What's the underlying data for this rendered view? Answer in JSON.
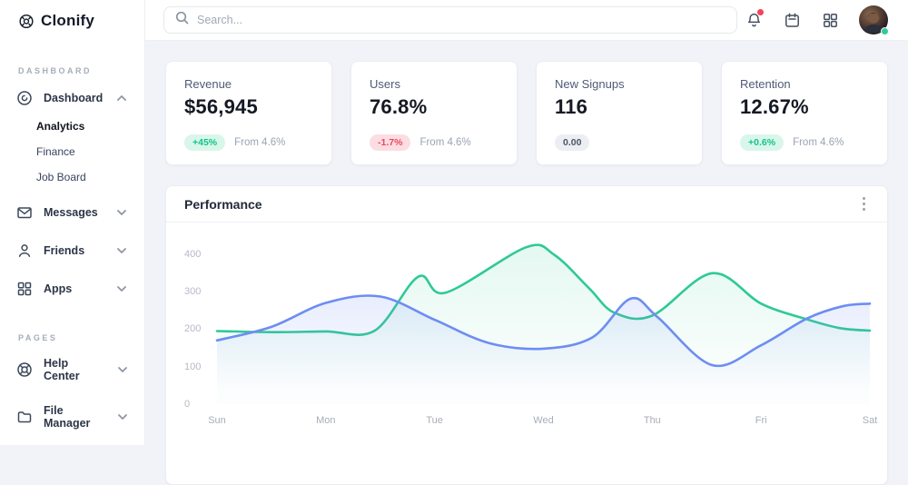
{
  "brand": {
    "name": "Clonify"
  },
  "sidebar": {
    "sections": [
      {
        "label": "DASHBOARD",
        "items": [
          {
            "label": "Dashboard",
            "icon": "dashboard-icon",
            "expanded": true,
            "children": [
              {
                "label": "Analytics",
                "active": true
              },
              {
                "label": "Finance",
                "active": false
              },
              {
                "label": "Job Board",
                "active": false
              }
            ]
          },
          {
            "label": "Messages",
            "icon": "mail-icon"
          },
          {
            "label": "Friends",
            "icon": "user-icon"
          },
          {
            "label": "Apps",
            "icon": "grid-icon"
          }
        ]
      },
      {
        "label": "PAGES",
        "items": [
          {
            "label": "Help Center",
            "icon": "lifebuoy-icon"
          },
          {
            "label": "File Manager",
            "icon": "folder-icon"
          }
        ]
      }
    ]
  },
  "header": {
    "search_placeholder": "Search...",
    "icons": [
      "bell-icon",
      "calendar-icon",
      "apps-grid-icon",
      "user-avatar"
    ],
    "notification_dot_color": "#f4435a",
    "online_dot_color": "#2ecb9c"
  },
  "stats": [
    {
      "label": "Revenue",
      "value": "$56,945",
      "badge": "+45%",
      "badge_type": "positive",
      "note": "From 4.6%"
    },
    {
      "label": "Users",
      "value": "76.8%",
      "badge": "-1.7%",
      "badge_type": "negative",
      "note": "From 4.6%"
    },
    {
      "label": "New Signups",
      "value": "116",
      "badge": "0.00",
      "badge_type": "neutral",
      "note": ""
    },
    {
      "label": "Retention",
      "value": "12.67%",
      "badge": "+0.6%",
      "badge_type": "positive",
      "note": "From 4.6%"
    }
  ],
  "chart_data": {
    "type": "area",
    "title": "Performance",
    "categories": [
      "Sun",
      "Mon",
      "Tue",
      "Wed",
      "Thu",
      "Fri",
      "Sat"
    ],
    "y_ticks": [
      0,
      100,
      200,
      300,
      400
    ],
    "ylim": [
      0,
      460
    ],
    "grid": false,
    "legend": "none",
    "series": [
      {
        "name": "green-series",
        "color": "#2ec996",
        "fill_opacity": 0.14,
        "day_values": [
          195,
          194,
          310,
          405,
          236,
          268,
          196
        ],
        "points": [
          [
            0,
            195
          ],
          [
            0.5,
            192
          ],
          [
            1,
            194
          ],
          [
            1.45,
            196
          ],
          [
            1.85,
            340
          ],
          [
            2.1,
            297
          ],
          [
            2.84,
            418
          ],
          [
            3.1,
            398
          ],
          [
            3.42,
            309
          ],
          [
            3.65,
            244
          ],
          [
            4,
            236
          ],
          [
            4.55,
            349
          ],
          [
            5,
            268
          ],
          [
            5.4,
            228
          ],
          [
            5.72,
            203
          ],
          [
            6,
            196
          ]
        ]
      },
      {
        "name": "blue-series",
        "color": "#6d8df2",
        "fill_opacity": 0.26,
        "day_values": [
          170,
          270,
          225,
          148,
          237,
          157,
          268
        ],
        "points": [
          [
            0,
            170
          ],
          [
            0.5,
            206
          ],
          [
            1,
            270
          ],
          [
            1.5,
            287
          ],
          [
            2,
            225
          ],
          [
            2.5,
            163
          ],
          [
            3,
            148
          ],
          [
            3.45,
            178
          ],
          [
            3.8,
            281
          ],
          [
            4.05,
            232
          ],
          [
            4.55,
            104
          ],
          [
            5,
            157
          ],
          [
            5.42,
            228
          ],
          [
            5.75,
            261
          ],
          [
            6,
            268
          ]
        ]
      }
    ]
  }
}
